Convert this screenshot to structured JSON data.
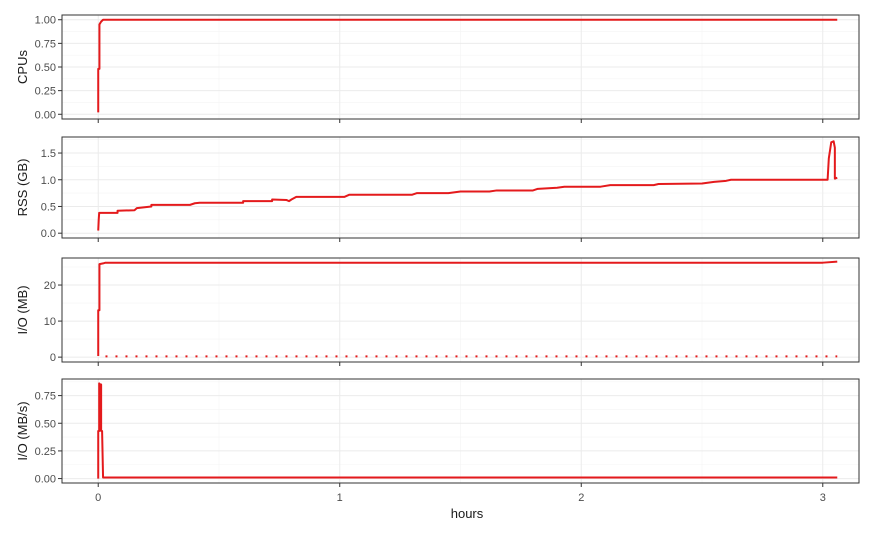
{
  "chart_data": {
    "type": "line",
    "xlabel": "hours",
    "xlim": [
      -0.15,
      3.15
    ],
    "x_ticks": [
      0,
      1,
      2,
      3
    ],
    "x_tick_labels": [
      "0",
      "1",
      "2",
      "3"
    ],
    "series_color": "#e41a1c",
    "panels": [
      {
        "ylabel": "CPUs",
        "ylim": [
          -0.05,
          1.05
        ],
        "y_ticks": [
          0,
          0.25,
          0.5,
          0.75,
          1
        ],
        "y_tick_labels": [
          "0.00",
          "0.25",
          "0.50",
          "0.75",
          "1.00"
        ],
        "series": [
          {
            "style": "solid",
            "x": [
              0.0,
              0.0,
              0.005,
              0.005,
              0.012,
              0.02,
              0.05,
              1.0,
              2.0,
              3.06
            ],
            "y": [
              0.02,
              0.48,
              0.48,
              0.95,
              0.98,
              1.0,
              1.0,
              1.0,
              1.0,
              1.0
            ]
          }
        ]
      },
      {
        "ylabel": "RSS (GB)",
        "ylim": [
          -0.09,
          1.8
        ],
        "y_ticks": [
          0,
          0.5,
          1,
          1.5
        ],
        "y_tick_labels": [
          "0.0",
          "0.5",
          "1.0",
          "1.5"
        ],
        "series": [
          {
            "style": "solid",
            "x": [
              0.0,
              0.002,
              0.004,
              0.006,
              0.08,
              0.08,
              0.15,
              0.16,
              0.22,
              0.22,
              0.38,
              0.4,
              0.42,
              0.6,
              0.6,
              0.72,
              0.72,
              0.78,
              0.79,
              0.8,
              0.82,
              1.02,
              1.04,
              1.3,
              1.32,
              1.45,
              1.5,
              1.62,
              1.65,
              1.8,
              1.82,
              1.9,
              1.93,
              2.08,
              2.12,
              2.3,
              2.32,
              2.5,
              2.55,
              2.6,
              2.62,
              2.95,
              3.02,
              3.025,
              3.035,
              3.045,
              3.05,
              3.05,
              3.06
            ],
            "y": [
              0.05,
              0.25,
              0.38,
              0.38,
              0.38,
              0.42,
              0.43,
              0.47,
              0.5,
              0.53,
              0.53,
              0.56,
              0.57,
              0.57,
              0.6,
              0.6,
              0.63,
              0.62,
              0.6,
              0.63,
              0.68,
              0.68,
              0.72,
              0.72,
              0.75,
              0.75,
              0.78,
              0.78,
              0.8,
              0.8,
              0.83,
              0.85,
              0.87,
              0.87,
              0.9,
              0.9,
              0.92,
              0.93,
              0.96,
              0.98,
              1.0,
              1.0,
              1.0,
              1.4,
              1.7,
              1.72,
              1.6,
              1.02,
              1.04
            ]
          }
        ]
      },
      {
        "ylabel": "I/O (MB)",
        "ylim": [
          -1.35,
          27.5
        ],
        "y_ticks": [
          0,
          10,
          20
        ],
        "y_tick_labels": [
          "0",
          "10",
          "20"
        ],
        "series": [
          {
            "style": "solid",
            "x": [
              0.0,
              0.0,
              0.005,
              0.005,
              0.02,
              0.03,
              1.0,
              2.0,
              3.0,
              3.06
            ],
            "y": [
              0.3,
              13.0,
              13.0,
              25.8,
              26.0,
              26.2,
              26.2,
              26.2,
              26.2,
              26.5
            ]
          },
          {
            "style": "dotted",
            "x": [
              0.03,
              3.06
            ],
            "y": [
              0.2,
              0.2
            ]
          }
        ]
      },
      {
        "ylabel": "I/O (MB/s)",
        "ylim": [
          -0.04,
          0.9
        ],
        "y_ticks": [
          0,
          0.25,
          0.5,
          0.75
        ],
        "y_tick_labels": [
          "0.00",
          "0.25",
          "0.50",
          "0.75"
        ],
        "series": [
          {
            "style": "solid",
            "x": [
              0.0,
              0.0,
              0.004,
              0.004,
              0.008,
              0.012,
              0.012,
              0.016,
              0.02,
              1.0,
              2.0,
              3.06
            ],
            "y": [
              0.0,
              0.43,
              0.43,
              0.86,
              0.85,
              0.85,
              0.43,
              0.43,
              0.01,
              0.01,
              0.01,
              0.01
            ]
          }
        ]
      }
    ]
  }
}
